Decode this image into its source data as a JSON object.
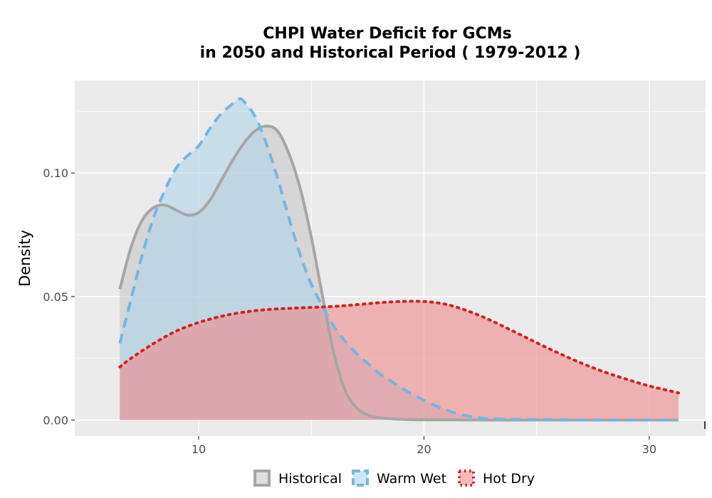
{
  "chart_data": {
    "type": "area",
    "title_lines": [
      "CHPI  Water Deficit for GCMs",
      "in 2050 and Historical Period ( 1979-2012 )"
    ],
    "xlabel": "",
    "ylabel": "Density",
    "xlim": [
      4.5,
      32.5
    ],
    "ylim": [
      -0.0065,
      0.1375
    ],
    "x_ticks": [
      10,
      20,
      30
    ],
    "x_tick_labels": [
      "10",
      "20",
      "30"
    ],
    "y_ticks": [
      0.0,
      0.05,
      0.1
    ],
    "y_tick_labels": [
      "0.00",
      "0.05",
      "0.10"
    ],
    "grid": true,
    "legend_position": "bottom",
    "series": [
      {
        "name": "Historical",
        "line_color": "#a6a6a6",
        "fill_color": "#c8c8c8",
        "line_style": "solid",
        "x": [
          6.5,
          7.0,
          7.5,
          8.0,
          8.5,
          9.0,
          9.5,
          10.0,
          10.5,
          11.0,
          11.5,
          12.0,
          12.5,
          13.0,
          13.5,
          14.0,
          14.5,
          15.0,
          15.5,
          16.0,
          16.5,
          17.0,
          17.5,
          18.0,
          19.0,
          20.0,
          22.0,
          25.0,
          28.0,
          31.3
        ],
        "y": [
          0.053,
          0.07,
          0.081,
          0.086,
          0.087,
          0.085,
          0.083,
          0.084,
          0.089,
          0.097,
          0.105,
          0.112,
          0.117,
          0.119,
          0.117,
          0.108,
          0.094,
          0.074,
          0.05,
          0.027,
          0.012,
          0.005,
          0.002,
          0.001,
          0.0003,
          0.0001,
          0.0,
          0.0,
          0.0,
          0.0
        ]
      },
      {
        "name": "Warm Wet",
        "line_color": "#77b6e1",
        "fill_color": "#b0d3ea",
        "line_style": "dashed",
        "x": [
          6.5,
          7.0,
          7.5,
          8.0,
          8.5,
          9.0,
          9.5,
          10.0,
          10.5,
          11.0,
          11.5,
          11.8,
          12.0,
          12.5,
          13.0,
          13.5,
          14.0,
          14.5,
          15.0,
          15.5,
          16.0,
          16.5,
          17.0,
          17.5,
          18.0,
          18.5,
          19.0,
          20.0,
          21.0,
          22.0,
          23.0,
          25.0,
          28.0,
          31.3
        ],
        "y": [
          0.031,
          0.049,
          0.067,
          0.082,
          0.093,
          0.102,
          0.107,
          0.111,
          0.118,
          0.124,
          0.128,
          0.13,
          0.129,
          0.123,
          0.112,
          0.098,
          0.082,
          0.067,
          0.055,
          0.046,
          0.038,
          0.032,
          0.027,
          0.023,
          0.019,
          0.016,
          0.013,
          0.008,
          0.004,
          0.0015,
          0.0006,
          0.0002,
          0.0,
          0.0
        ]
      },
      {
        "name": "Hot Dry",
        "line_color": "#d42020",
        "fill_color": "#f08a8a",
        "line_style": "dotted",
        "x": [
          6.5,
          7.0,
          8.0,
          9.0,
          10.0,
          11.0,
          12.0,
          13.0,
          14.0,
          15.0,
          16.0,
          17.0,
          18.0,
          19.0,
          20.0,
          21.0,
          22.0,
          23.0,
          24.0,
          25.0,
          26.0,
          27.0,
          28.0,
          29.0,
          30.0,
          31.3
        ],
        "y": [
          0.0215,
          0.025,
          0.031,
          0.036,
          0.0395,
          0.042,
          0.0437,
          0.0447,
          0.0452,
          0.0456,
          0.046,
          0.0467,
          0.0475,
          0.048,
          0.048,
          0.0468,
          0.044,
          0.0402,
          0.0358,
          0.0313,
          0.027,
          0.023,
          0.0195,
          0.0165,
          0.0138,
          0.011
        ]
      }
    ]
  }
}
